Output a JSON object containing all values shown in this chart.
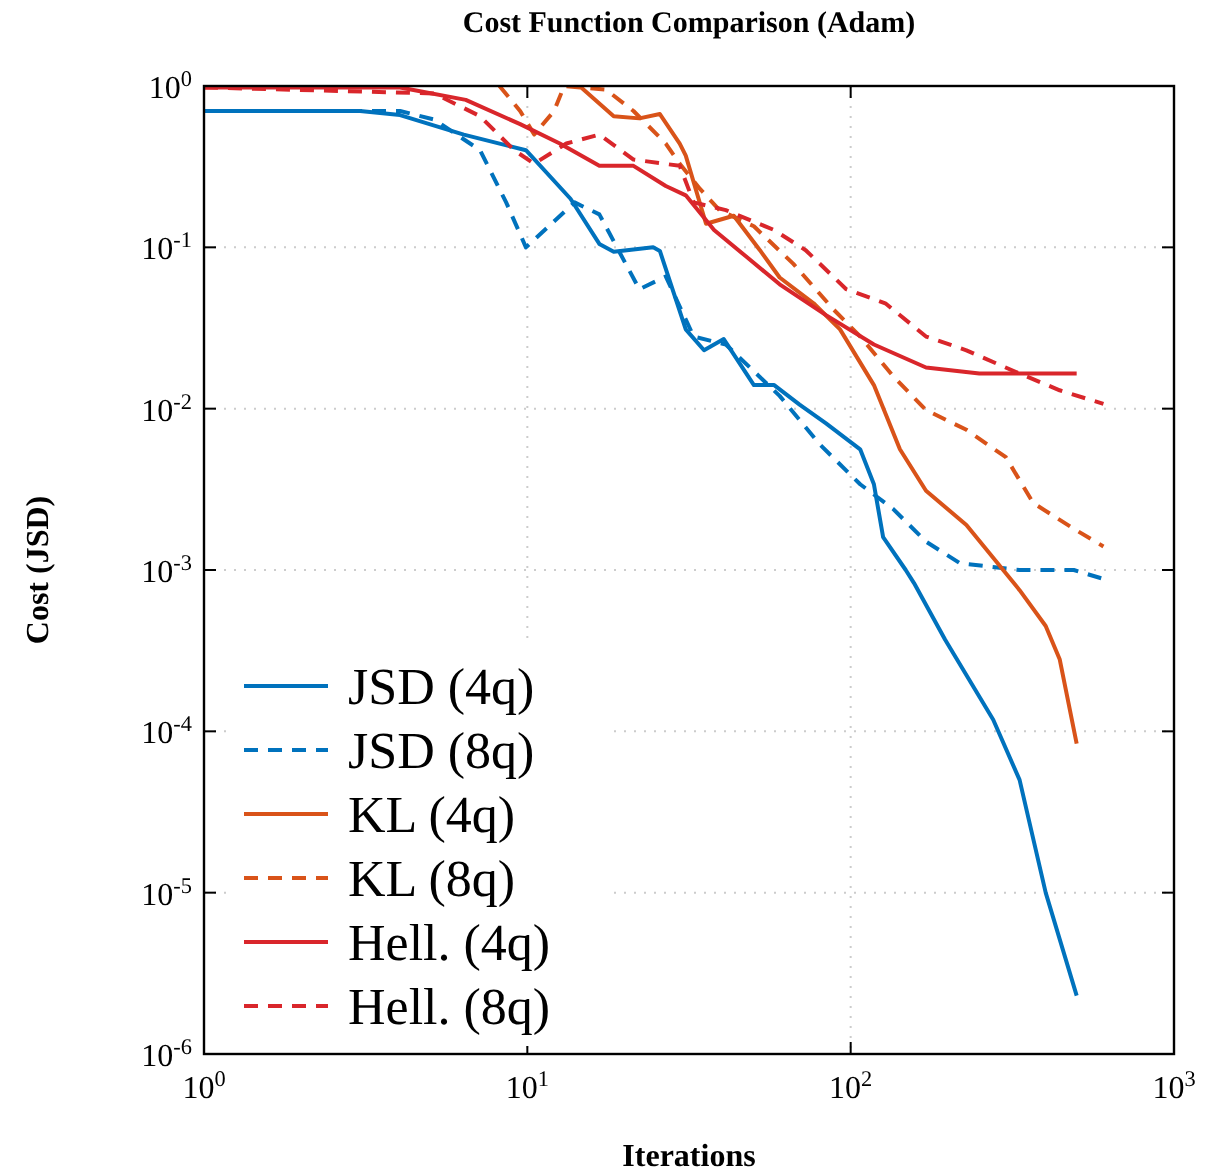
{
  "chart_data": {
    "type": "line",
    "title": "Cost Function Comparison (Adam)",
    "xlabel": "Iterations",
    "ylabel": "Cost (JSD)",
    "log": "xy",
    "grid": true,
    "legend": "bottom left",
    "xlim": [
      1,
      1000
    ],
    "ylim": [
      1e-06,
      1
    ],
    "xticks": [
      {
        "value": 1,
        "label": "10$^{0}$"
      },
      {
        "value": 10,
        "label": "10$^{1}$"
      },
      {
        "value": 100,
        "label": "10$^{2}$"
      },
      {
        "value": 1000,
        "label": "10$^{3}$"
      }
    ],
    "yticks": [
      {
        "value": 1e-06,
        "label": "10$^{-6}$"
      },
      {
        "value": 1e-05,
        "label": "10$^{-5}$"
      },
      {
        "value": 0.0001,
        "label": "10$^{-4}$"
      },
      {
        "value": 0.001,
        "label": "10$^{-3}$"
      },
      {
        "value": 0.01,
        "label": "10$^{-2}$"
      },
      {
        "value": 0.1,
        "label": "10$^{-1}$"
      },
      {
        "value": 1,
        "label": "10$^{0}$"
      }
    ],
    "series": [
      {
        "name": "JSD (4q)",
        "color": "#0072bd",
        "line_style": "solid",
        "x": [
          1,
          3.04,
          4.04,
          6.36,
          9.9,
          13.6,
          16.7,
          18.5,
          24.5,
          25.7,
          30.9,
          35.2,
          40.5,
          50.2,
          58,
          69.5,
          83.9,
          107,
          118,
          126,
          148,
          157,
          196,
          276,
          333,
          401,
          500
        ],
        "values": [
          0.7,
          0.7,
          0.66,
          0.5,
          0.4,
          0.2,
          0.105,
          0.094,
          0.1,
          0.095,
          0.031,
          0.023,
          0.027,
          0.014,
          0.014,
          0.0106,
          0.0081,
          0.0056,
          0.0034,
          0.0016,
          0.001,
          0.00083,
          0.00037,
          0.000118,
          5e-05,
          1e-05,
          2.3e-06
        ]
      },
      {
        "name": "JSD (8q)",
        "color": "#0072bd",
        "line_style": "dashed",
        "x": [
          1,
          4.04,
          5.15,
          7.14,
          8.6,
          9.9,
          14,
          16.7,
          22.2,
          26.8,
          32.7,
          41.1,
          60.3,
          80.3,
          107,
          135,
          171,
          218,
          333,
          490,
          605
        ],
        "values": [
          0.7,
          0.7,
          0.62,
          0.4,
          0.19,
          0.1,
          0.19,
          0.16,
          0.055,
          0.066,
          0.028,
          0.025,
          0.012,
          0.006,
          0.0034,
          0.0024,
          0.0015,
          0.0011,
          0.001,
          0.001,
          0.00088
        ]
      },
      {
        "name": "KL (4q)",
        "color": "#d95319",
        "line_style": "solid",
        "x": [
          14.5,
          18.5,
          22.2,
          25.7,
          29.6,
          30.9,
          35.7,
          43.5,
          52.4,
          60.3,
          76.8,
          92.7,
          118,
          142,
          171,
          228,
          333,
          401,
          443,
          500
        ],
        "values": [
          1,
          0.65,
          0.63,
          0.67,
          0.44,
          0.37,
          0.14,
          0.157,
          0.096,
          0.065,
          0.045,
          0.031,
          0.014,
          0.0056,
          0.0031,
          0.0019,
          0.00075,
          0.00045,
          0.00028,
          8.4e-05
        ]
      },
      {
        "name": "KL (8q)",
        "color": "#d95319",
        "line_style": "dashed",
        "x": [
          8.2,
          9.5,
          10.5,
          12.1,
          13,
          17.5,
          21.3,
          26.8,
          29.6,
          34.2,
          39.3,
          50.2,
          66.5,
          88.7,
          107,
          135,
          171,
          228,
          302,
          367,
          490,
          605
        ],
        "values": [
          1,
          0.7,
          0.5,
          0.7,
          1,
          0.95,
          0.7,
          0.44,
          0.33,
          0.23,
          0.17,
          0.135,
          0.079,
          0.041,
          0.028,
          0.016,
          0.0098,
          0.0074,
          0.005,
          0.0026,
          0.0018,
          0.0014
        ]
      },
      {
        "name": "Hell. (4q)",
        "color": "#d9262b",
        "line_style": "solid",
        "x": [
          1,
          4.04,
          6.45,
          9.5,
          12.6,
          16.7,
          21.3,
          26.8,
          30.9,
          37.8,
          47.4,
          60.3,
          83.9,
          118,
          171,
          250,
          500
        ],
        "values": [
          0.98,
          0.98,
          0.82,
          0.58,
          0.44,
          0.32,
          0.32,
          0.24,
          0.21,
          0.128,
          0.088,
          0.059,
          0.038,
          0.025,
          0.018,
          0.0165,
          0.0165
        ]
      },
      {
        "name": "Hell. (8q)",
        "color": "#d9262b",
        "line_style": "dashed",
        "x": [
          1,
          5.15,
          7.14,
          9.1,
          10.5,
          13.2,
          16.7,
          21.3,
          29.6,
          32.7,
          41.1,
          58,
          72.6,
          96.9,
          128,
          171,
          228,
          333,
          443,
          605
        ],
        "values": [
          0.98,
          0.9,
          0.65,
          0.4,
          0.33,
          0.44,
          0.5,
          0.35,
          0.32,
          0.19,
          0.17,
          0.128,
          0.096,
          0.055,
          0.045,
          0.028,
          0.023,
          0.0165,
          0.013,
          0.0107
        ]
      }
    ]
  }
}
